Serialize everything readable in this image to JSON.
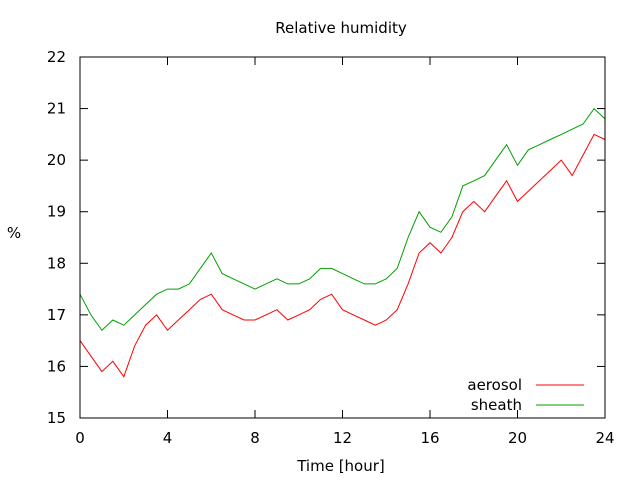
{
  "chart_data": {
    "type": "line",
    "title": "Relative humidity",
    "xlabel": "Time [hour]",
    "ylabel": "%",
    "xlim": [
      0,
      24
    ],
    "ylim": [
      15,
      22
    ],
    "x_ticks": [
      0,
      4,
      8,
      12,
      16,
      20,
      24
    ],
    "y_ticks": [
      15,
      16,
      17,
      18,
      19,
      20,
      21,
      22
    ],
    "grid": false,
    "legend_position": "bottom-right",
    "series": [
      {
        "name": "aerosol",
        "color": "#ff0000",
        "x": [
          0,
          0.5,
          1,
          1.5,
          2,
          2.5,
          3,
          3.5,
          4,
          4.5,
          5,
          5.5,
          6,
          6.5,
          7,
          7.5,
          8,
          8.5,
          9,
          9.5,
          10,
          10.5,
          11,
          11.5,
          12,
          12.5,
          13,
          13.5,
          14,
          14.5,
          15,
          15.5,
          16,
          16.5,
          17,
          17.5,
          18,
          18.5,
          19,
          19.5,
          20,
          20.5,
          21,
          21.5,
          22,
          22.5,
          23,
          23.5,
          24
        ],
        "values": [
          16.5,
          16.2,
          15.9,
          16.1,
          15.8,
          16.4,
          16.8,
          17.0,
          16.7,
          16.9,
          17.1,
          17.3,
          17.4,
          17.1,
          17.0,
          16.9,
          16.9,
          17.0,
          17.1,
          16.9,
          17.0,
          17.1,
          17.3,
          17.4,
          17.1,
          17.0,
          16.9,
          16.8,
          16.9,
          17.1,
          17.6,
          18.2,
          18.4,
          18.2,
          18.5,
          19.0,
          19.2,
          19.0,
          19.3,
          19.6,
          19.2,
          19.4,
          19.6,
          19.8,
          20.0,
          19.7,
          20.1,
          20.5,
          20.4
        ]
      },
      {
        "name": "sheath",
        "color": "#00a000",
        "x": [
          0,
          0.5,
          1,
          1.5,
          2,
          2.5,
          3,
          3.5,
          4,
          4.5,
          5,
          5.5,
          6,
          6.5,
          7,
          7.5,
          8,
          8.5,
          9,
          9.5,
          10,
          10.5,
          11,
          11.5,
          12,
          12.5,
          13,
          13.5,
          14,
          14.5,
          15,
          15.5,
          16,
          16.5,
          17,
          17.5,
          18,
          18.5,
          19,
          19.5,
          20,
          20.5,
          21,
          21.5,
          22,
          22.5,
          23,
          23.5,
          24
        ],
        "values": [
          17.4,
          17.0,
          16.7,
          16.9,
          16.8,
          17.0,
          17.2,
          17.4,
          17.5,
          17.5,
          17.6,
          17.9,
          18.2,
          17.8,
          17.7,
          17.6,
          17.5,
          17.6,
          17.7,
          17.6,
          17.6,
          17.7,
          17.9,
          17.9,
          17.8,
          17.7,
          17.6,
          17.6,
          17.7,
          17.9,
          18.5,
          19.0,
          18.7,
          18.6,
          18.9,
          19.5,
          19.6,
          19.7,
          20.0,
          20.3,
          19.9,
          20.2,
          20.3,
          20.4,
          20.5,
          20.6,
          20.7,
          21.0,
          20.8
        ]
      }
    ]
  }
}
